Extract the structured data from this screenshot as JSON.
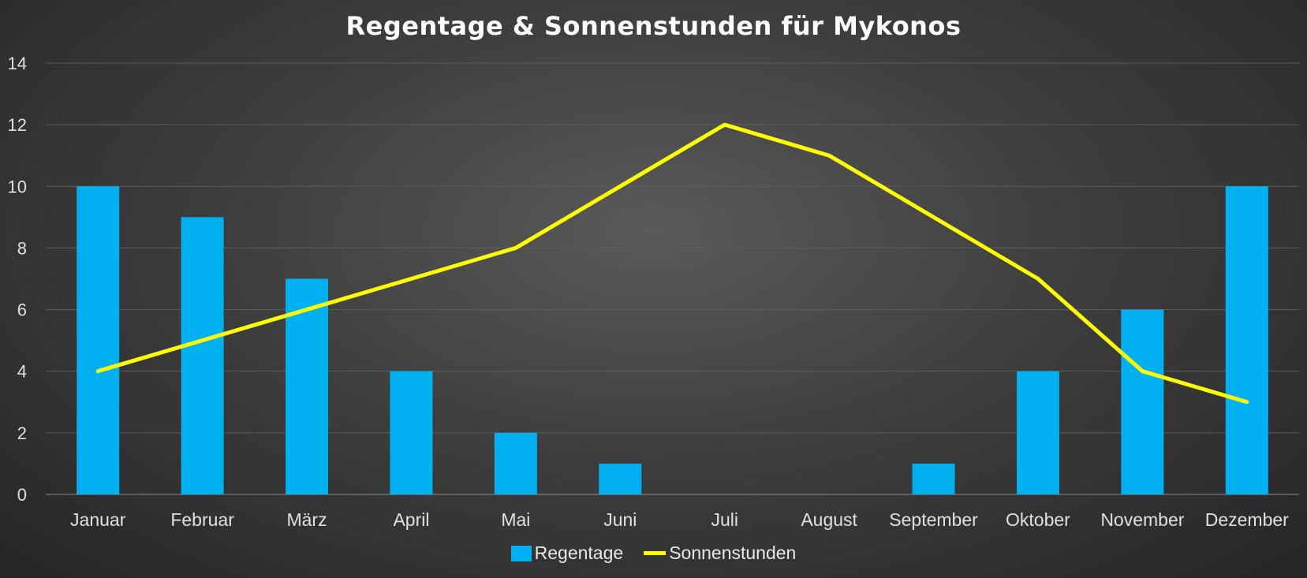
{
  "chart_data": {
    "type": "bar",
    "title": "Regentage & Sonnenstunden für Mykonos",
    "categories": [
      "Januar",
      "Februar",
      "März",
      "April",
      "Mai",
      "Juni",
      "Juli",
      "August",
      "September",
      "Oktober",
      "November",
      "Dezember"
    ],
    "series": [
      {
        "name": "Regentage",
        "type": "bar",
        "color": "#00b0f0",
        "values": [
          10,
          9,
          7,
          4,
          2,
          1,
          0,
          0,
          1,
          4,
          6,
          10
        ]
      },
      {
        "name": "Sonnenstunden",
        "type": "line",
        "color": "#ffff00",
        "values": [
          4,
          5,
          6,
          7,
          8,
          10,
          12,
          11,
          9,
          7,
          4,
          3
        ]
      }
    ],
    "ylim": [
      0,
      14
    ],
    "yticks": [
      0,
      2,
      4,
      6,
      8,
      10,
      12,
      14
    ],
    "grid": true,
    "legend_position": "bottom"
  }
}
